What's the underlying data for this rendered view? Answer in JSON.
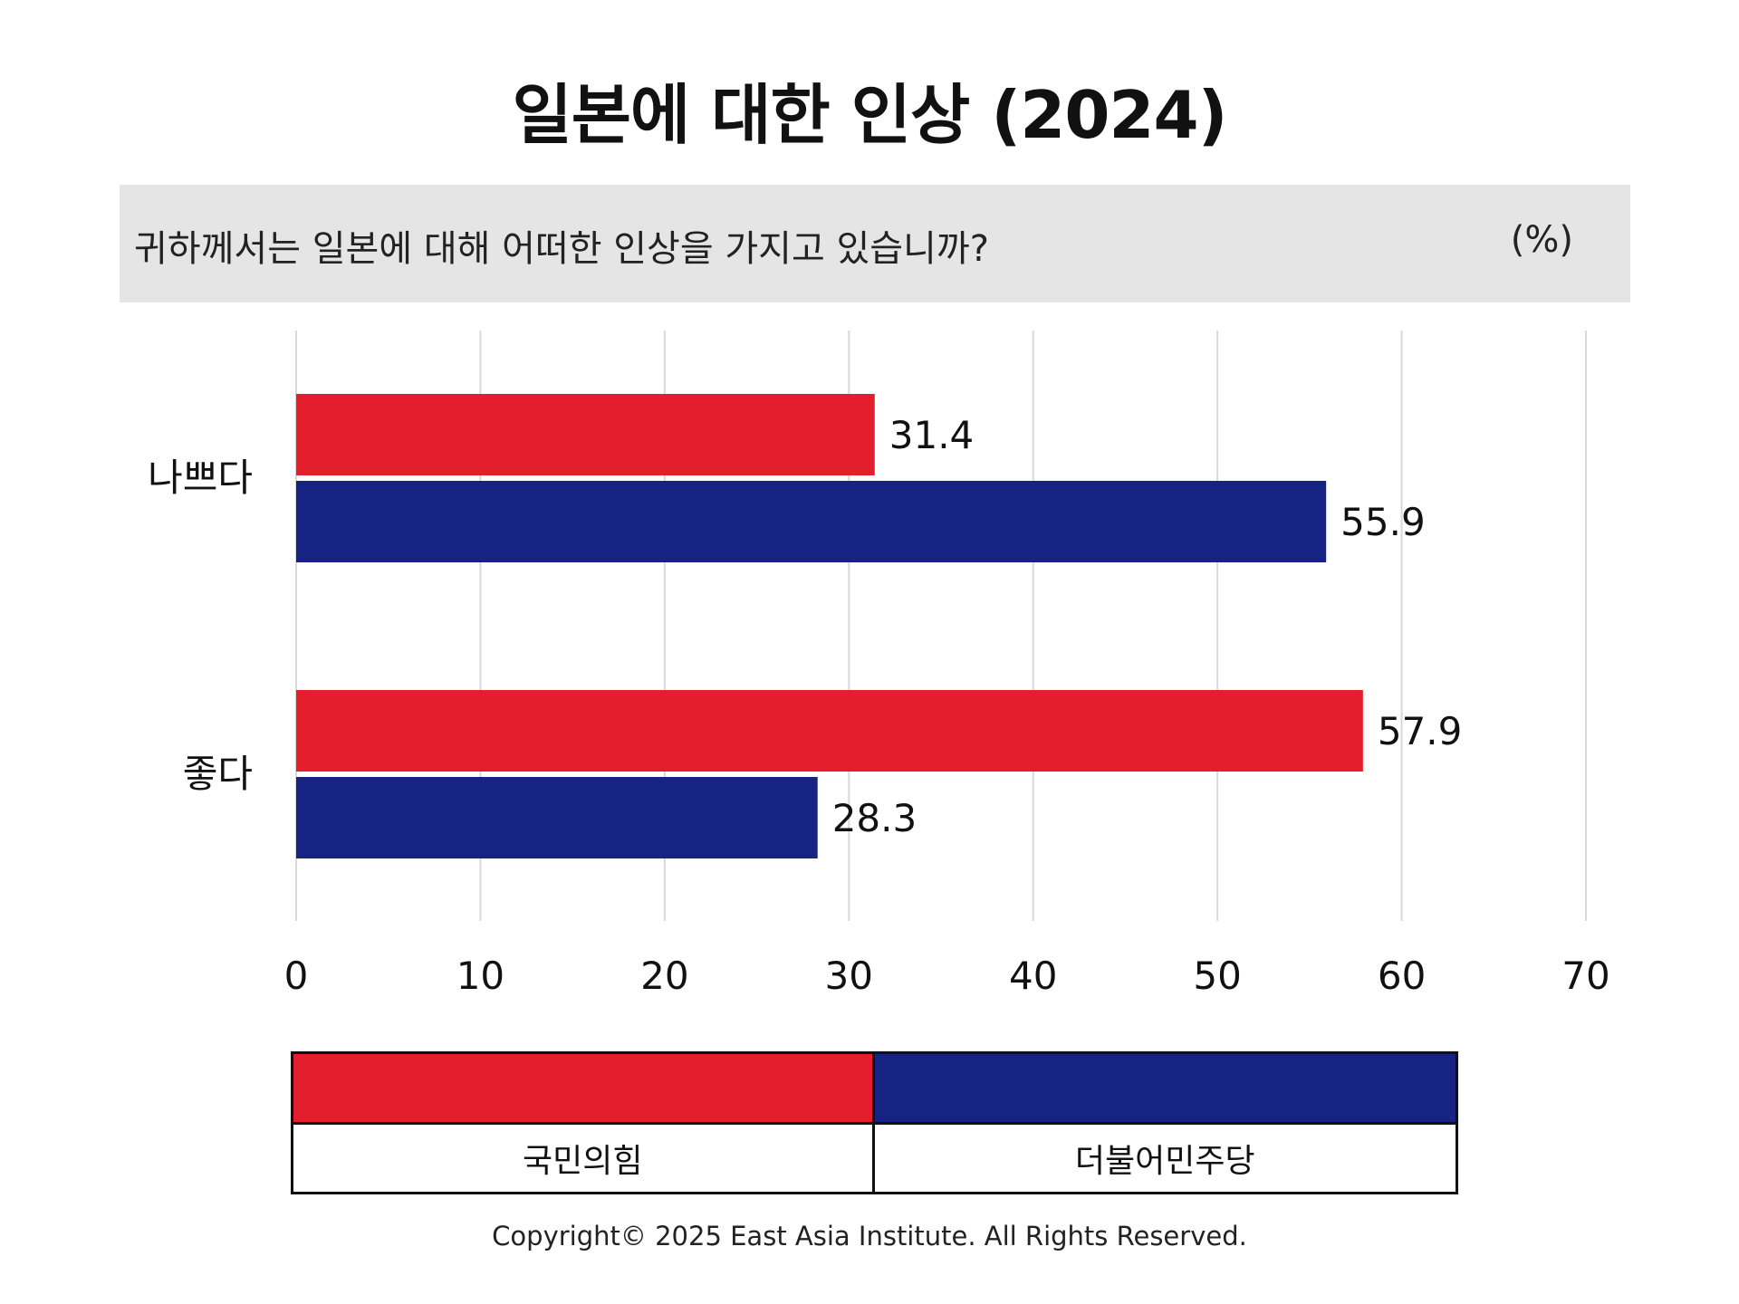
{
  "title": "일본에 대한 인상 (2024)",
  "question": "귀하께서는 일본에 대해 어떠한 인상을 가지고 있습니까?",
  "unit": "(%)",
  "footer": "Copyright© 2025 East Asia Institute. All Rights Reserved.",
  "colors": {
    "series1": "#e41f2d",
    "series2": "#172383",
    "grid": "#d9d9d9"
  },
  "chart_data": {
    "type": "bar",
    "orientation": "horizontal",
    "categories": [
      "나쁘다",
      "좋다"
    ],
    "series": [
      {
        "name": "국민의힘",
        "values": [
          31.4,
          57.9
        ]
      },
      {
        "name": "더불어민주당",
        "values": [
          55.9,
          28.3
        ]
      }
    ],
    "xlim": [
      0,
      70
    ],
    "xticks": [
      "0",
      "10",
      "20",
      "30",
      "40",
      "50",
      "60",
      "70"
    ],
    "data_labels": [
      [
        "31.4",
        "57.9"
      ],
      [
        "55.9",
        "28.3"
      ]
    ],
    "grid": true,
    "legend_position": "bottom"
  }
}
